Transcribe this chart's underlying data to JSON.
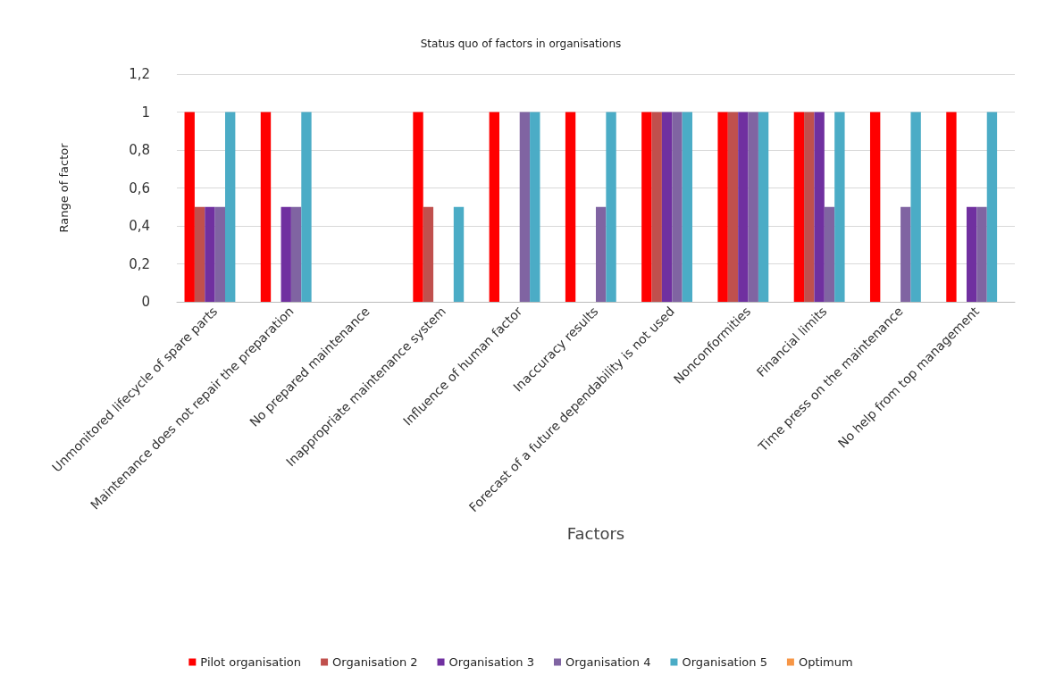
{
  "chart_data": {
    "type": "bar",
    "title": "Status quo of factors in organisations",
    "xlabel": "Factors",
    "ylabel": "Range of factor",
    "categories": [
      "Unmonitored lifecycle of spare parts",
      "Maintenance does not repair the preparation",
      "No prepared maintenance",
      "Inappropriate maintenance system",
      "Influence of human factor",
      "Inaccuracy results",
      "Forecast of a future dependability is not used",
      "Nonconformities",
      "Financial limits",
      "Time press on the maintenance",
      "No help from top management"
    ],
    "series": [
      {
        "name": "Pilot organisation",
        "color": "#ff0000",
        "values": [
          1,
          1,
          0,
          1,
          1,
          1,
          1,
          1,
          1,
          1,
          1
        ]
      },
      {
        "name": "Organisation 2",
        "color": "#c0504d",
        "values": [
          0.5,
          0,
          0,
          0.5,
          0,
          0,
          1,
          1,
          1,
          0,
          0
        ]
      },
      {
        "name": "Organisation 3",
        "color": "#7030a0",
        "values": [
          0.5,
          0.5,
          0,
          0,
          0,
          0,
          1,
          1,
          1,
          0,
          0.5
        ]
      },
      {
        "name": "Organisation 4",
        "color": "#8064a2",
        "values": [
          0.5,
          0.5,
          0,
          0,
          1,
          0.5,
          1,
          1,
          0.5,
          0.5,
          0.5
        ]
      },
      {
        "name": "Organisation 5",
        "color": "#4bacc6",
        "values": [
          1,
          1,
          0,
          0.5,
          1,
          1,
          1,
          1,
          1,
          1,
          1
        ]
      },
      {
        "name": "Optimum",
        "color": "#f79646",
        "values": [
          0,
          0,
          0,
          0,
          0,
          0,
          0,
          0,
          0,
          0,
          0
        ]
      }
    ],
    "ylim": [
      0,
      1.2
    ],
    "yticks": [
      0,
      {
        "value": 0.2,
        "label": "0,2"
      },
      {
        "value": 0.4,
        "label": "0,4"
      },
      {
        "value": 0.6,
        "label": "0,6"
      },
      {
        "value": 0.8,
        "label": "0,8"
      },
      1,
      {
        "value": 1.2,
        "label": "1,2"
      }
    ],
    "grid": "y",
    "legend": "bottom"
  }
}
